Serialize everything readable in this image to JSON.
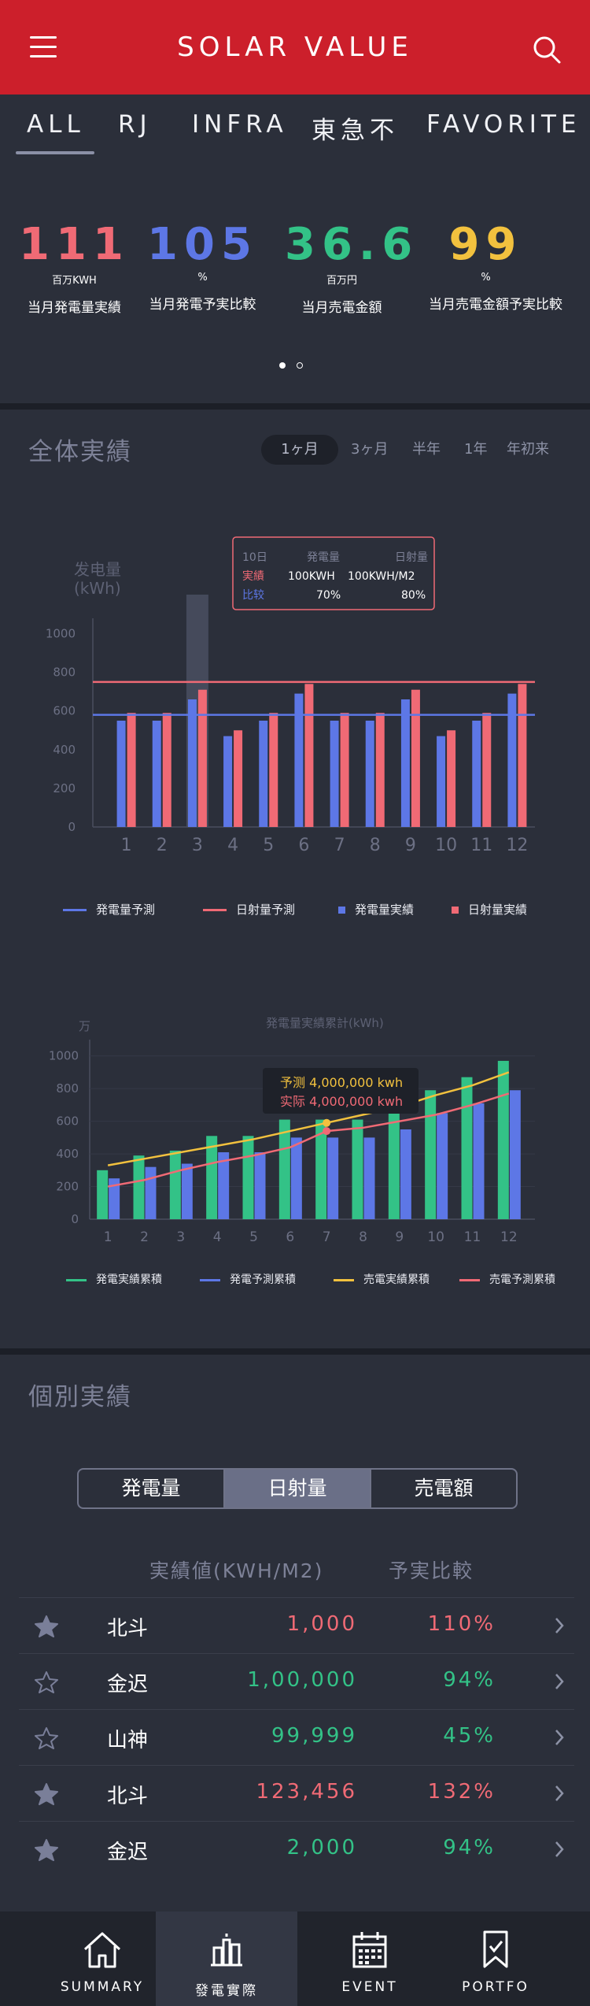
{
  "header": {
    "title": "SOLAR VALUE"
  },
  "tabs": [
    "ALL",
    "RJ",
    "INFRA",
    "東急不",
    "FAVORITE"
  ],
  "kpis": [
    {
      "value": "111",
      "unit": "百万KWH",
      "label": "当月発電量実績",
      "color": "#f06a75"
    },
    {
      "value": "105",
      "unit": "%",
      "label": "当月発電予実比較",
      "color": "#5d77e6"
    },
    {
      "value": "36.6",
      "unit": "百万円",
      "label": "当月売電金額",
      "color": "#33c287"
    },
    {
      "value": "99",
      "unit": "%",
      "label": "当月売電金額予実比較",
      "color": "#f2c13e"
    }
  ],
  "overall": {
    "title": "全体実績",
    "periods": [
      "1ヶ月",
      "3ヶ月",
      "半年",
      "1年",
      "年初来"
    ],
    "active_period": "1ヶ月"
  },
  "chart_data": [
    {
      "type": "bar",
      "ylabel": "发电量\n(kWh)",
      "ylabel_line1": "发电量",
      "ylabel_line2": "(kWh)",
      "categories": [
        "1",
        "2",
        "3",
        "4",
        "5",
        "6",
        "7",
        "8",
        "9",
        "10",
        "11",
        "12"
      ],
      "yticks": [
        "0",
        "200",
        "400",
        "600",
        "800",
        "1000"
      ],
      "ylim": [
        0,
        1100
      ],
      "series": [
        {
          "name": "発電量実績",
          "values": [
            550,
            550,
            660,
            470,
            550,
            690,
            550,
            550,
            660,
            470,
            550,
            690
          ],
          "color": "#5d77e6"
        },
        {
          "name": "日射量実績",
          "values": [
            590,
            590,
            710,
            500,
            590,
            740,
            590,
            590,
            710,
            500,
            590,
            740
          ],
          "color": "#f06a75"
        }
      ],
      "lines": [
        {
          "name": "発電量予測",
          "value": 580,
          "color": "#5d77e6"
        },
        {
          "name": "日射量予測",
          "value": 750,
          "color": "#f06a75"
        }
      ],
      "highlight_index": 2,
      "tooltip": {
        "date": "10日",
        "col1": "発電量",
        "col2": "日射量",
        "row1_label": "実績",
        "row1_v1": "100KWH",
        "row1_v2": "100KWH/M2",
        "row2_label": "比较",
        "row2_v1": "70%",
        "row2_v2": "80%"
      },
      "legend": [
        "発電量予測",
        "日射量予測",
        "発電量実績",
        "日射量実績"
      ]
    },
    {
      "type": "bar",
      "title": "発電量実績累計(kWh)",
      "ylabel": "万",
      "categories": [
        "1",
        "2",
        "3",
        "4",
        "5",
        "6",
        "7",
        "8",
        "9",
        "10",
        "11",
        "12"
      ],
      "yticks": [
        "0",
        "200",
        "400",
        "600",
        "800",
        "1000"
      ],
      "ylim": [
        0,
        1100
      ],
      "series": [
        {
          "name": "発電実績累積",
          "values": [
            300,
            390,
            420,
            510,
            510,
            610,
            610,
            610,
            680,
            790,
            870,
            970
          ],
          "color": "#33c287"
        },
        {
          "name": "発電予測累積",
          "values": [
            250,
            320,
            340,
            410,
            410,
            500,
            500,
            500,
            550,
            650,
            710,
            790
          ],
          "color": "#5d77e6"
        }
      ],
      "lines": [
        {
          "name": "売電実績累積",
          "values": [
            330,
            370,
            410,
            450,
            490,
            540,
            590,
            640,
            690,
            760,
            820,
            900
          ],
          "color": "#f2c13e"
        },
        {
          "name": "売電予測累積",
          "values": [
            200,
            240,
            300,
            350,
            390,
            440,
            540,
            560,
            600,
            640,
            700,
            770
          ],
          "color": "#f06a75"
        }
      ],
      "tooltip": {
        "line1": "予测 4,000,000 kwh",
        "line2": "实际 4,000,000 kwh"
      },
      "legend": [
        "発電実績累積",
        "発電予測累積",
        "売電実績累積",
        "売電予測累積"
      ]
    }
  ],
  "individual": {
    "title": "個別実績",
    "segments": [
      "発電量",
      "日射量",
      "売電額"
    ],
    "active_segment": "日射量",
    "col_value": "実績値(KWH/M2)",
    "col_ratio": "予実比較",
    "rows": [
      {
        "favorite": true,
        "name": "北斗",
        "value": "1,000",
        "ratio": "110%",
        "value_color": "#f06a75",
        "ratio_color": "#f06a75"
      },
      {
        "favorite": false,
        "name": "金迟",
        "value": "1,00,000",
        "ratio": "94%",
        "value_color": "#33c287",
        "ratio_color": "#33c287"
      },
      {
        "favorite": false,
        "name": "山神",
        "value": "99,999",
        "ratio": "45%",
        "value_color": "#33c287",
        "ratio_color": "#33c287"
      },
      {
        "favorite": true,
        "name": "北斗",
        "value": "123,456",
        "ratio": "132%",
        "value_color": "#f06a75",
        "ratio_color": "#f06a75"
      },
      {
        "favorite": true,
        "name": "金迟",
        "value": "2,000",
        "ratio": "94%",
        "value_color": "#33c287",
        "ratio_color": "#33c287"
      }
    ]
  },
  "bottom_nav": [
    {
      "label": "SUMMARY",
      "icon": "home-icon"
    },
    {
      "label": "發電實際",
      "icon": "solar-plant-icon",
      "active": true
    },
    {
      "label": "EVENT",
      "icon": "calendar-icon"
    },
    {
      "label": "PORTFO",
      "icon": "bookmark-icon"
    }
  ]
}
